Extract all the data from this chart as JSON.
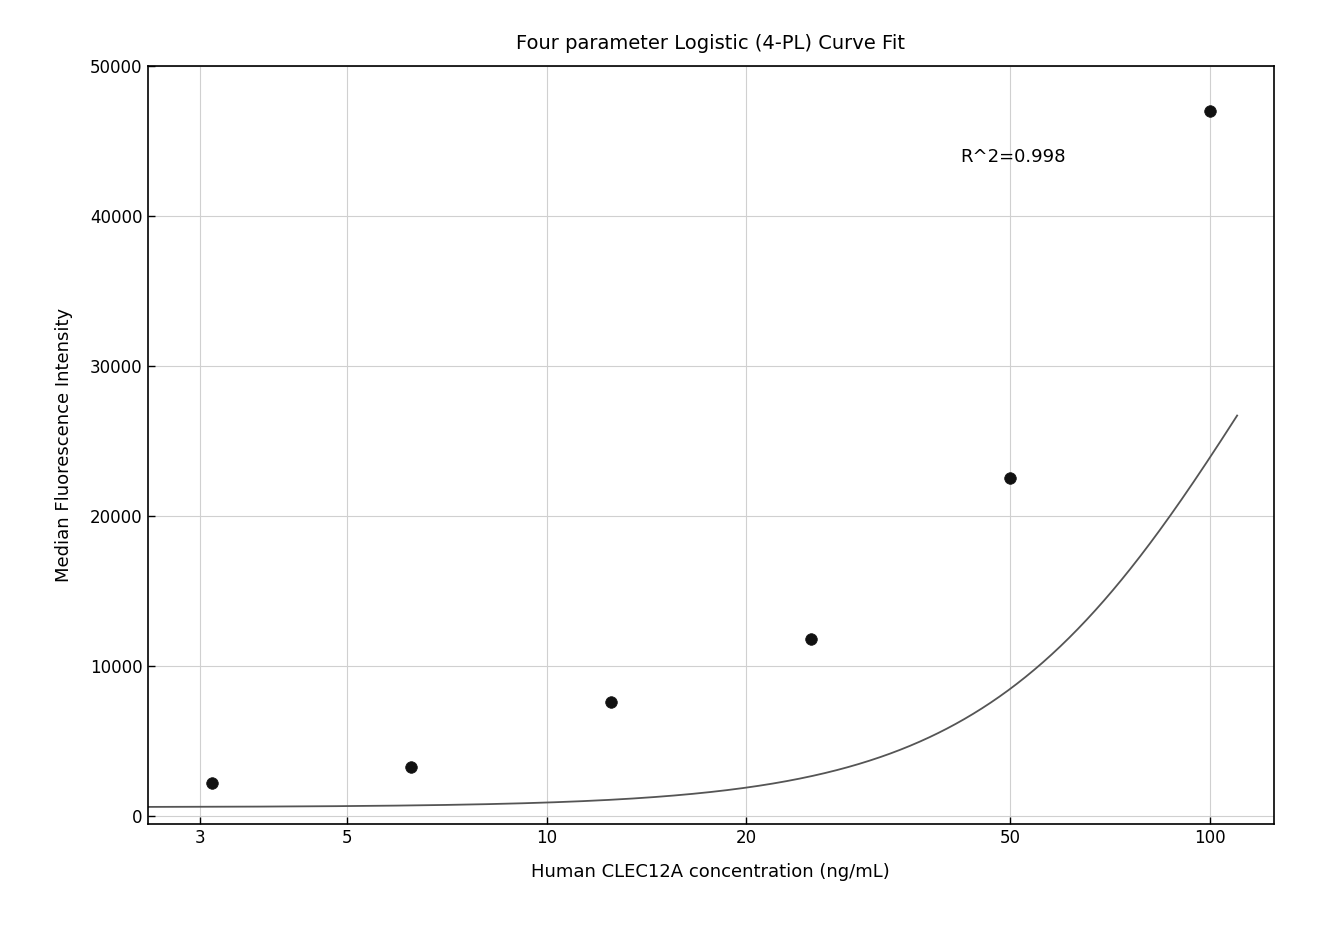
{
  "title": "Four parameter Logistic (4-PL) Curve Fit",
  "xlabel": "Human CLEC12A concentration (ng/mL)",
  "ylabel": "Median Fluorescence Intensity",
  "scatter_x": [
    3.125,
    6.25,
    12.5,
    25,
    50,
    100
  ],
  "scatter_y": [
    2200,
    3300,
    7600,
    11800,
    22500,
    47000
  ],
  "xticks": [
    3,
    5,
    10,
    20,
    50,
    100
  ],
  "xlim_log": [
    0.39794,
    2.09691
  ],
  "ylim": [
    -500,
    50000
  ],
  "yticks": [
    0,
    10000,
    20000,
    30000,
    40000,
    50000
  ],
  "r2_text": "R^2=0.998",
  "r2_x": 42,
  "r2_y": 44500,
  "line_color": "#555555",
  "marker_color": "#111111",
  "grid_color": "#d0d0d0",
  "bg_color": "#ffffff",
  "title_fontsize": 14,
  "label_fontsize": 13,
  "tick_fontsize": 12,
  "annotation_fontsize": 13,
  "4pl_A": 600.0,
  "4pl_B": 2.1,
  "4pl_C": 120.0,
  "4pl_D": 58000.0
}
